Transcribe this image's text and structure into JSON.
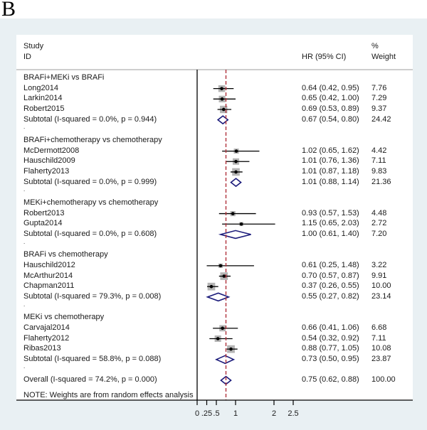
{
  "panel_label": "B",
  "chart_data": {
    "type": "forest",
    "headers": {
      "study": "Study",
      "id": "ID",
      "effect": "HR (95% CI)",
      "weight_pct": "%",
      "weight": "Weight"
    },
    "x_ticks": [
      "0",
      ".25",
      ".5",
      "1",
      "2",
      "2.5"
    ],
    "x_tick_values": [
      0,
      0.25,
      0.5,
      1,
      2,
      2.5
    ],
    "x_range": [
      0,
      2.5
    ],
    "reference_line": 0.75,
    "groups": [
      {
        "title": "BRAFi+MEKi vs BRAFi",
        "studies": [
          {
            "id": "Long2014",
            "hr": 0.64,
            "lo": 0.42,
            "hi": 0.95,
            "label": "0.64 (0.42, 0.95)",
            "weight": "7.76"
          },
          {
            "id": "Larkin2014",
            "hr": 0.65,
            "lo": 0.42,
            "hi": 1.0,
            "label": "0.65 (0.42, 1.00)",
            "weight": "7.29"
          },
          {
            "id": "Robert2015",
            "hr": 0.69,
            "lo": 0.53,
            "hi": 0.89,
            "label": "0.69 (0.53, 0.89)",
            "weight": "9.37"
          }
        ],
        "subtotal": {
          "id": "Subtotal  (I-squared = 0.0%, p = 0.944)",
          "hr": 0.67,
          "lo": 0.54,
          "hi": 0.8,
          "label": "0.67 (0.54, 0.80)",
          "weight": "24.42"
        }
      },
      {
        "title": "BRAFi+chemotherapy vs chemotherapy",
        "studies": [
          {
            "id": "McDermott2008",
            "hr": 1.02,
            "lo": 0.65,
            "hi": 1.62,
            "label": "1.02 (0.65, 1.62)",
            "weight": "4.42"
          },
          {
            "id": "Hauschild2009",
            "hr": 1.01,
            "lo": 0.76,
            "hi": 1.36,
            "label": "1.01 (0.76, 1.36)",
            "weight": "7.11"
          },
          {
            "id": "Flaherty2013",
            "hr": 1.01,
            "lo": 0.87,
            "hi": 1.18,
            "label": "1.01 (0.87, 1.18)",
            "weight": "9.83"
          }
        ],
        "subtotal": {
          "id": "Subtotal  (I-squared = 0.0%, p = 0.999)",
          "hr": 1.01,
          "lo": 0.88,
          "hi": 1.14,
          "label": "1.01 (0.88, 1.14)",
          "weight": "21.36"
        }
      },
      {
        "title": "MEKi+chemotherapy vs chemotherapy",
        "studies": [
          {
            "id": "Robert2013",
            "hr": 0.93,
            "lo": 0.57,
            "hi": 1.53,
            "label": "0.93 (0.57, 1.53)",
            "weight": "4.48"
          },
          {
            "id": "Gupta2014",
            "hr": 1.15,
            "lo": 0.65,
            "hi": 2.03,
            "label": "1.15 (0.65, 2.03)",
            "weight": "2.72"
          }
        ],
        "subtotal": {
          "id": "Subtotal  (I-squared = 0.0%, p = 0.608)",
          "hr": 1.0,
          "lo": 0.61,
          "hi": 1.4,
          "label": "1.00 (0.61, 1.40)",
          "weight": "7.20"
        }
      },
      {
        "title": "BRAFi vs chemotherapy",
        "studies": [
          {
            "id": "Hauschild2012",
            "hr": 0.61,
            "lo": 0.25,
            "hi": 1.48,
            "label": "0.61 (0.25, 1.48)",
            "weight": "3.22"
          },
          {
            "id": "McArthur2014",
            "hr": 0.7,
            "lo": 0.57,
            "hi": 0.87,
            "label": "0.70 (0.57, 0.87)",
            "weight": "9.91"
          },
          {
            "id": "Chapman2011",
            "hr": 0.37,
            "lo": 0.26,
            "hi": 0.55,
            "label": "0.37 (0.26, 0.55)",
            "weight": "10.00"
          }
        ],
        "subtotal": {
          "id": "Subtotal  (I-squared = 79.3%, p = 0.008)",
          "hr": 0.55,
          "lo": 0.27,
          "hi": 0.82,
          "label": "0.55 (0.27, 0.82)",
          "weight": "23.14"
        }
      },
      {
        "title": "MEKi vs chemotherapy",
        "studies": [
          {
            "id": "Carvajal2014",
            "hr": 0.66,
            "lo": 0.41,
            "hi": 1.06,
            "label": "0.66 (0.41, 1.06)",
            "weight": "6.68"
          },
          {
            "id": "Flaherty2012",
            "hr": 0.54,
            "lo": 0.32,
            "hi": 0.92,
            "label": "0.54 (0.32, 0.92)",
            "weight": "7.11"
          },
          {
            "id": "Ribas2013",
            "hr": 0.88,
            "lo": 0.77,
            "hi": 1.05,
            "label": "0.88 (0.77, 1.05)",
            "weight": "10.08"
          }
        ],
        "subtotal": {
          "id": "Subtotal  (I-squared = 58.8%, p = 0.088)",
          "hr": 0.73,
          "lo": 0.5,
          "hi": 0.95,
          "label": "0.73 (0.50, 0.95)",
          "weight": "23.87"
        }
      }
    ],
    "group_separator": ".",
    "overall": {
      "id": "Overall  (I-squared = 74.2%, p = 0.000)",
      "hr": 0.75,
      "lo": 0.62,
      "hi": 0.88,
      "label": "0.75 (0.62, 0.88)",
      "weight": "100.00"
    },
    "note": "NOTE: Weights are from random effects analysis",
    "colors": {
      "box": "#b4b4b4",
      "diamond": "#1a1a7a",
      "reference_line": "#b0303a",
      "background": "#e9f0f3"
    }
  }
}
